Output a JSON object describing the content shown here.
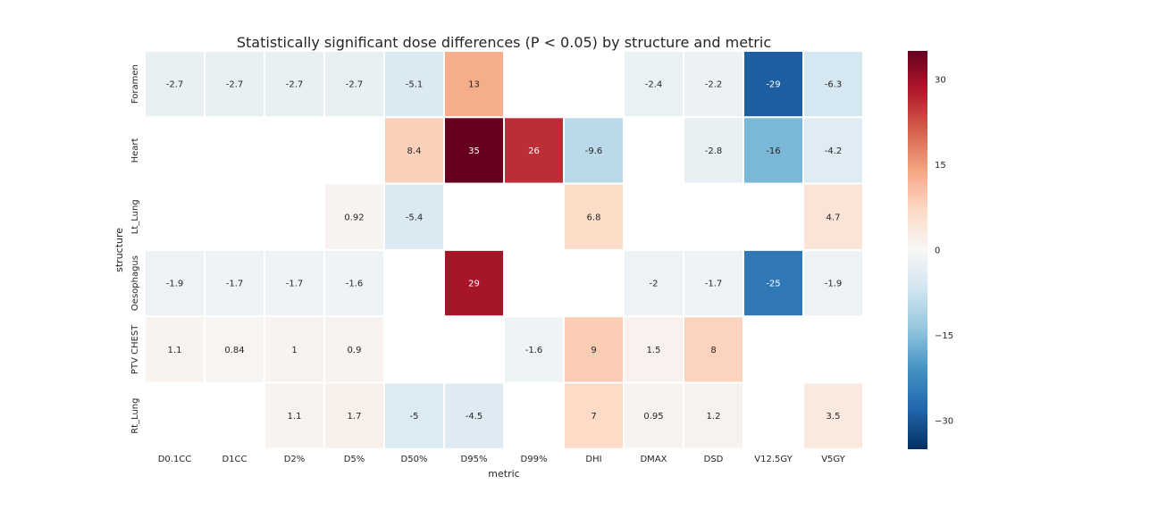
{
  "chart_data": {
    "type": "heatmap",
    "title": "Statistically significant dose differences (P < 0.05) by structure and metric",
    "xlabel": "metric",
    "ylabel": "structure",
    "x_categories": [
      "D0.1CC",
      "D1CC",
      "D2%",
      "D5%",
      "D50%",
      "D95%",
      "D99%",
      "DHI",
      "DMAX",
      "DSD",
      "V12.5GY",
      "V5GY"
    ],
    "y_categories": [
      "Foramen",
      "Heart",
      "Lt_Lung",
      "Oesophagus",
      "PTV CHEST",
      "Rt_Lung"
    ],
    "values": [
      [
        -2.7,
        -2.7,
        -2.7,
        -2.7,
        -5.1,
        13,
        null,
        null,
        -2.4,
        -2.2,
        -29,
        -6.3
      ],
      [
        null,
        null,
        null,
        null,
        8.4,
        35,
        26,
        -9.6,
        null,
        -2.8,
        -16,
        -4.2
      ],
      [
        null,
        null,
        null,
        0.92,
        -5.4,
        null,
        null,
        6.8,
        null,
        null,
        null,
        4.7
      ],
      [
        -1.9,
        -1.7,
        -1.7,
        -1.6,
        null,
        29,
        null,
        null,
        -2,
        -1.7,
        -25,
        -1.9
      ],
      [
        1.1,
        0.84,
        1,
        0.9,
        null,
        null,
        -1.6,
        9,
        1.5,
        8,
        null,
        null
      ],
      [
        null,
        null,
        1.1,
        1.7,
        -5,
        -4.5,
        null,
        7,
        0.95,
        1.2,
        null,
        3.5
      ]
    ],
    "value_labels": [
      [
        "-2.7",
        "-2.7",
        "-2.7",
        "-2.7",
        "-5.1",
        "13",
        "",
        "",
        "-2.4",
        "-2.2",
        "-29",
        "-6.3"
      ],
      [
        "",
        "",
        "",
        "",
        "8.4",
        "35",
        "26",
        "-9.6",
        "",
        "-2.8",
        "-16",
        "-4.2"
      ],
      [
        "",
        "",
        "",
        "0.92",
        "-5.4",
        "",
        "",
        "6.8",
        "",
        "",
        "",
        "4.7"
      ],
      [
        "-1.9",
        "-1.7",
        "-1.7",
        "-1.6",
        "",
        "29",
        "",
        "",
        "-2",
        "-1.7",
        "-25",
        "-1.9"
      ],
      [
        "1.1",
        "0.84",
        "1",
        "0.9",
        "",
        "",
        "-1.6",
        "9",
        "1.5",
        "8",
        "",
        ""
      ],
      [
        "",
        "",
        "1.1",
        "1.7",
        "-5",
        "-4.5",
        "",
        "7",
        "0.95",
        "1.2",
        "",
        "3.5"
      ]
    ],
    "colorbar": {
      "vmin": -35,
      "vmax": 35,
      "ticks": [
        30,
        15,
        0,
        -15,
        -30
      ],
      "tick_labels": [
        "30",
        "15",
        "0",
        "−15",
        "−30"
      ],
      "colormap": "RdBu_r",
      "colors": {
        "strong_negative": "#053061",
        "neutral": "#f7f7f7",
        "strong_positive": "#67001f"
      }
    },
    "grid": true,
    "missing_cells": "blank"
  }
}
